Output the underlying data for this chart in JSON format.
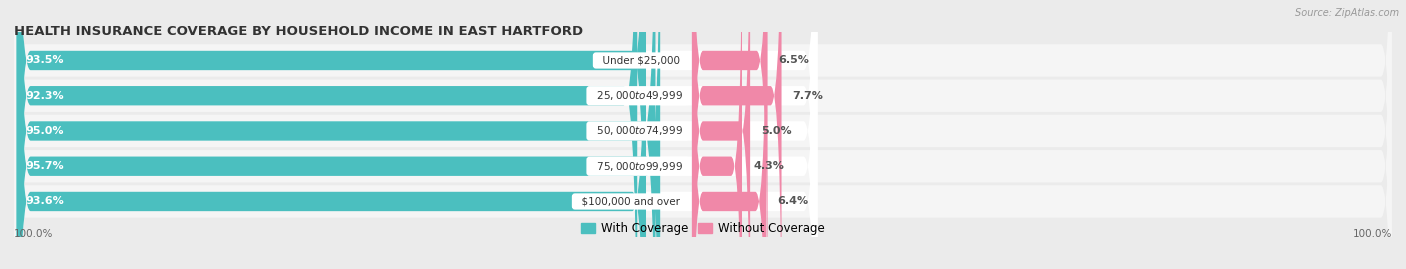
{
  "title": "HEALTH INSURANCE COVERAGE BY HOUSEHOLD INCOME IN EAST HARTFORD",
  "source": "Source: ZipAtlas.com",
  "categories": [
    "Under $25,000",
    "$25,000 to $49,999",
    "$50,000 to $74,999",
    "$75,000 to $99,999",
    "$100,000 and over"
  ],
  "with_coverage": [
    93.5,
    92.3,
    95.0,
    95.7,
    93.6
  ],
  "without_coverage": [
    6.5,
    7.7,
    5.0,
    4.3,
    6.4
  ],
  "color_with": "#4BBFBF",
  "color_without": "#F088A8",
  "background_color": "#ebebeb",
  "bar_background": "#ffffff",
  "row_background": "#f5f5f5",
  "title_fontsize": 9.5,
  "label_fontsize": 8.0,
  "tick_fontsize": 7.5,
  "legend_fontsize": 8.5,
  "left_label_pct": [
    "93.5%",
    "92.3%",
    "95.0%",
    "95.7%",
    "93.6%"
  ],
  "right_label_pct": [
    "6.5%",
    "7.7%",
    "5.0%",
    "4.3%",
    "6.4%"
  ],
  "bottom_left": "100.0%",
  "bottom_right": "100.0%",
  "bar_scale": 55,
  "pink_scale": 60
}
